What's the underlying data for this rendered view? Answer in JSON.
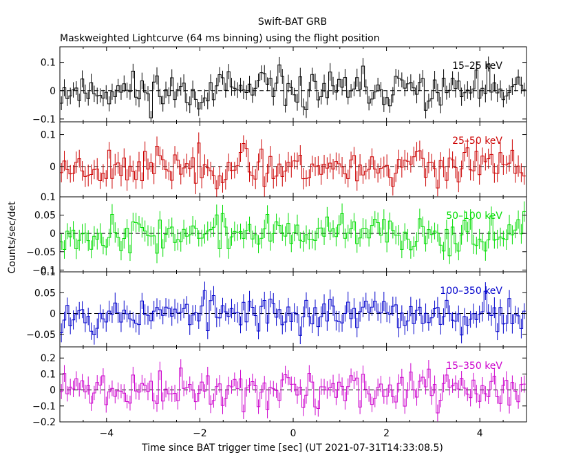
{
  "chart_data": {
    "type": "line",
    "title": "Swift-BAT GRB",
    "subtitle": "Maskweighted Lightcurve (64 ms binning) using the flight position",
    "xlabel": "Time since BAT trigger time [sec] (UT 2021-07-31T14:33:08.5)",
    "ylabel": "Counts/sec/det",
    "xlim": [
      -5,
      5
    ],
    "xticks": [
      -4,
      -2,
      0,
      2,
      4
    ],
    "xtick_labels": [
      "−4",
      "−2",
      "0",
      "2",
      "4"
    ],
    "bin_width_sec": 0.064,
    "panels": [
      {
        "name": "15–25 keV",
        "color": "#000000",
        "ylim": [
          -0.11,
          0.155
        ],
        "yticks": [
          -0.1,
          0,
          0.1
        ],
        "ytick_labels": [
          "−0.1",
          "0",
          "0.1"
        ],
        "amplitude": 0.035,
        "error": 0.028,
        "seed": 11
      },
      {
        "name": "25–50 keV",
        "color": "#cc0000",
        "ylim": [
          -0.095,
          0.14
        ],
        "yticks": [
          0,
          0.1
        ],
        "ytick_labels": [
          "0",
          "0.1"
        ],
        "amplitude": 0.03,
        "error": 0.03,
        "seed": 23
      },
      {
        "name": "50–100 keV",
        "color": "#00dd00",
        "ylim": [
          -0.105,
          0.1
        ],
        "yticks": [
          -0.1,
          -0.05,
          0,
          0.05,
          0.1
        ],
        "ytick_labels": [
          "−0.1",
          "−0.05",
          "0",
          "0.05",
          "0.1"
        ],
        "amplitude": 0.025,
        "error": 0.025,
        "seed": 37
      },
      {
        "name": "100–350 keV",
        "color": "#0000cc",
        "ylim": [
          -0.08,
          0.1
        ],
        "yticks": [
          -0.05,
          0,
          0.05,
          0.1
        ],
        "ytick_labels": [
          "−0.05",
          "0",
          "0.05",
          "0.1"
        ],
        "amplitude": 0.022,
        "error": 0.022,
        "seed": 53
      },
      {
        "name": "15–350 keV",
        "color": "#cc00cc",
        "ylim": [
          -0.2,
          0.27
        ],
        "yticks": [
          -0.2,
          -0.1,
          0,
          0.1,
          0.2
        ],
        "ytick_labels": [
          "−0.2",
          "−0.1",
          "0",
          "0.1",
          "0.2"
        ],
        "amplitude": 0.06,
        "error": 0.05,
        "seed": 71
      }
    ]
  }
}
